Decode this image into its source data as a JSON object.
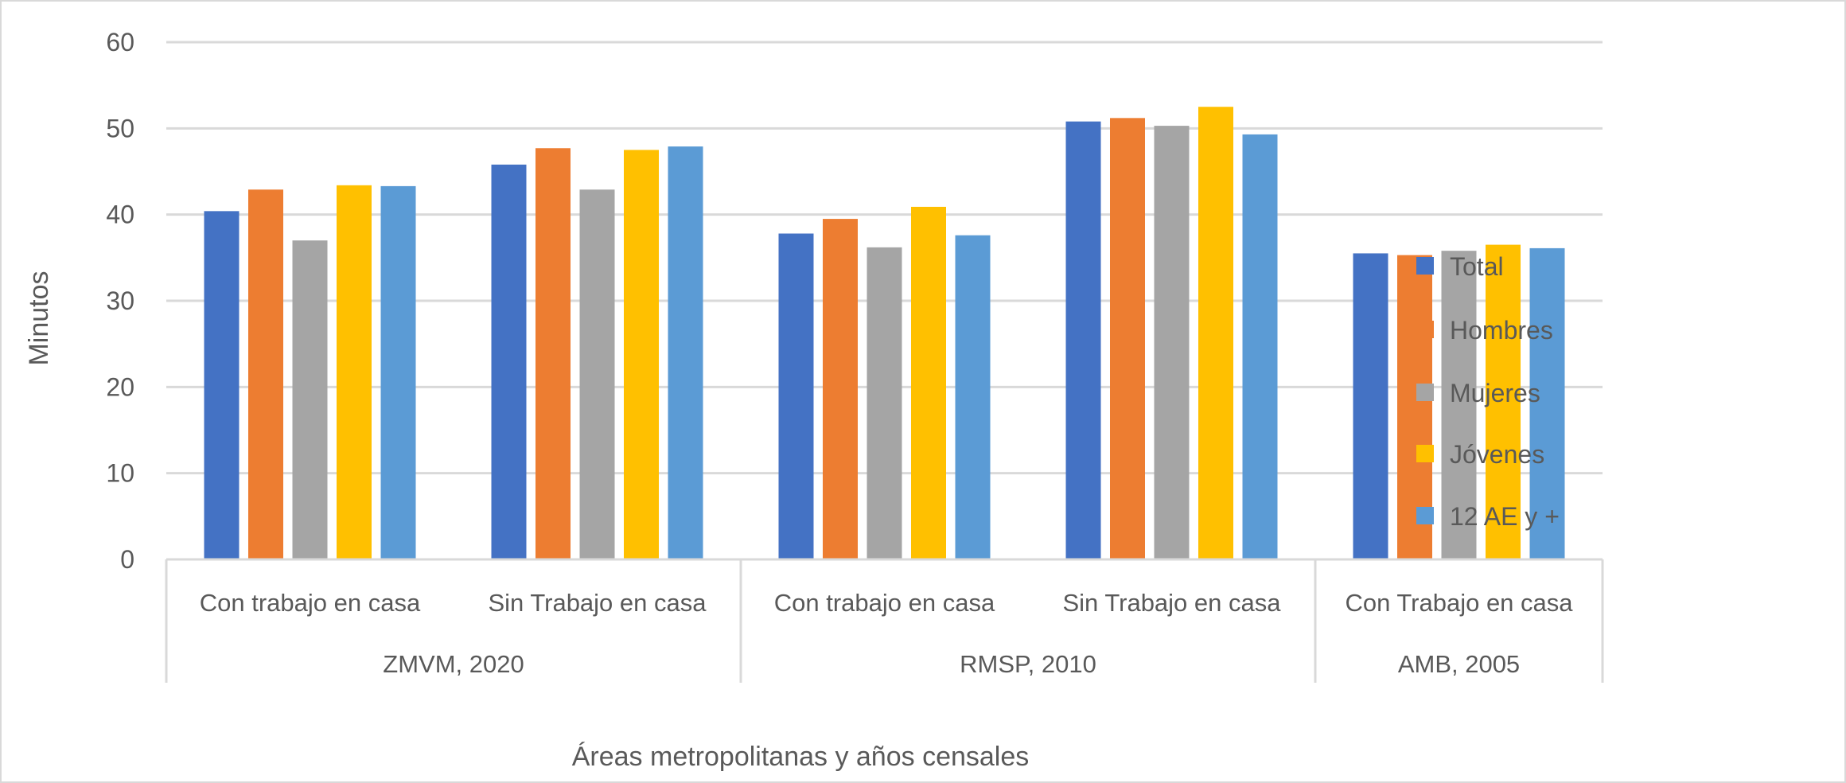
{
  "chart_data": {
    "type": "bar",
    "xlabel": "Áreas metropolitanas y años censales",
    "ylabel": "Minutos",
    "ylim": [
      0,
      60
    ],
    "yticks": [
      0,
      10,
      20,
      30,
      40,
      50,
      60
    ],
    "grid": true,
    "legend_position": "right",
    "groups": [
      {
        "label": "ZMVM, 2020",
        "categories": [
          "Con trabajo en casa",
          "Sin Trabajo en casa"
        ]
      },
      {
        "label": "RMSP, 2010",
        "categories": [
          "Con trabajo en casa",
          "Sin Trabajo en casa"
        ]
      },
      {
        "label": "AMB, 2005",
        "categories": [
          "Con Trabajo en casa"
        ]
      }
    ],
    "categories": [
      "Con trabajo en casa",
      "Sin Trabajo en casa",
      "Con trabajo en casa",
      "Sin Trabajo en casa",
      "Con Trabajo en casa"
    ],
    "series": [
      {
        "name": "Total",
        "color": "#4472c4",
        "values": [
          40.4,
          45.8,
          37.8,
          50.8,
          35.5
        ]
      },
      {
        "name": "Hombres",
        "color": "#ed7d31",
        "values": [
          42.9,
          47.7,
          39.5,
          51.2,
          35.3
        ]
      },
      {
        "name": "Mujeres",
        "color": "#a5a5a5",
        "values": [
          37.0,
          42.9,
          36.2,
          50.3,
          35.8
        ]
      },
      {
        "name": "Jóvenes",
        "color": "#ffc000",
        "values": [
          43.4,
          47.5,
          40.9,
          52.5,
          36.5
        ]
      },
      {
        "name": "12 AE y +",
        "color": "#5b9bd5",
        "values": [
          43.3,
          47.9,
          37.6,
          49.3,
          36.1
        ]
      }
    ]
  }
}
